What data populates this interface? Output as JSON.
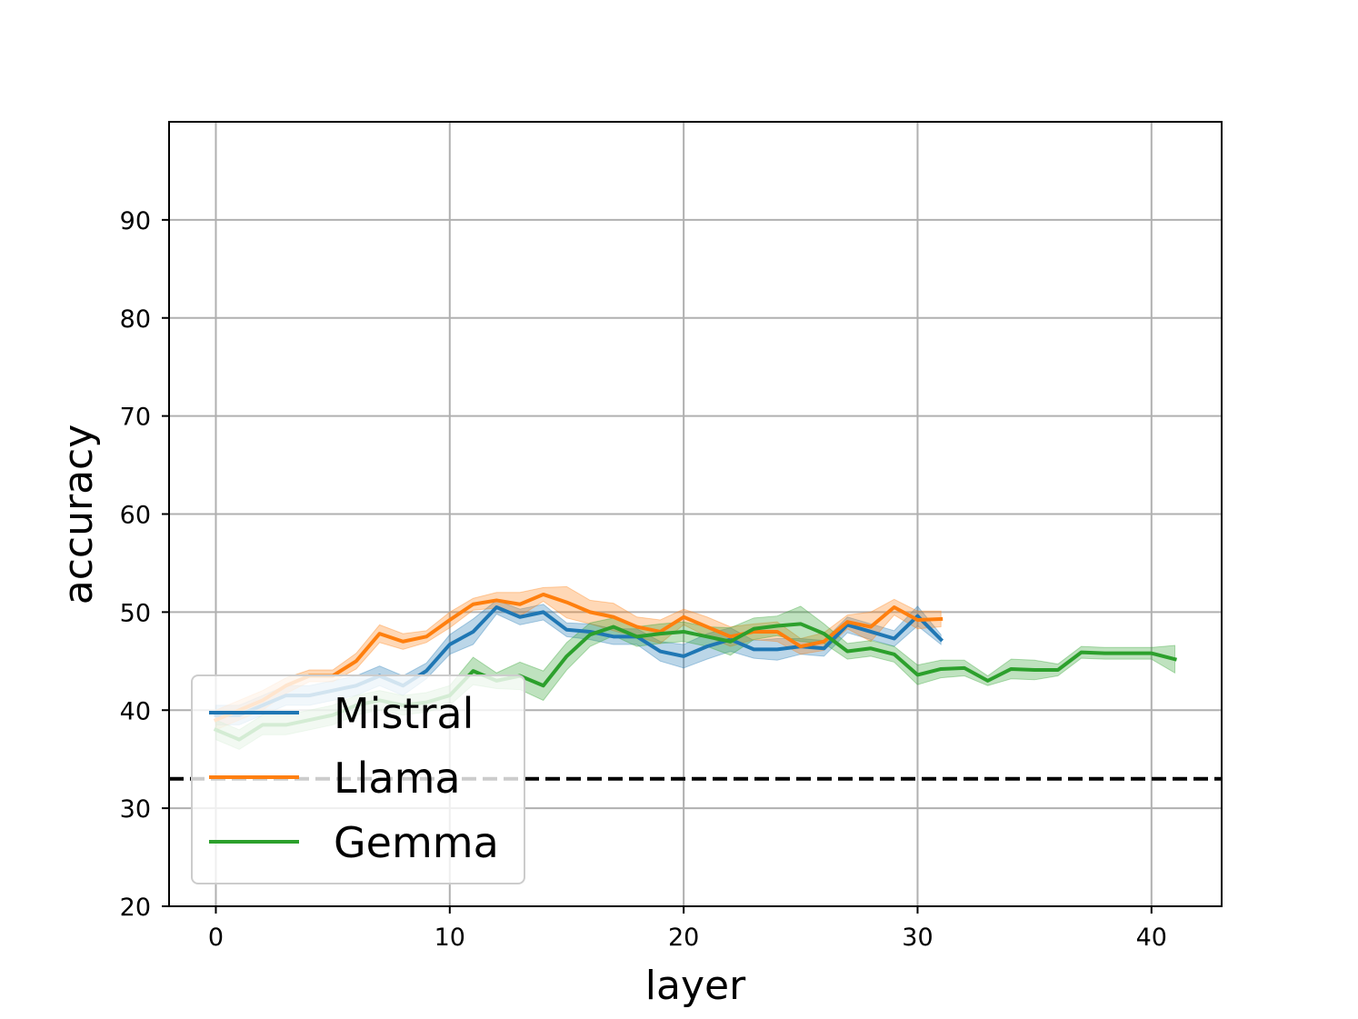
{
  "chart_data": {
    "type": "line",
    "xlabel": "layer",
    "ylabel": "accuracy",
    "xlim": [
      -2,
      43
    ],
    "ylim": [
      20,
      100
    ],
    "xticks": [
      0,
      10,
      20,
      30,
      40
    ],
    "yticks": [
      20,
      30,
      40,
      50,
      60,
      70,
      80,
      90
    ],
    "grid": true,
    "legend_position": "lower-left",
    "baseline": {
      "y": 33,
      "style": "dashed",
      "color": "#000000"
    },
    "series": [
      {
        "name": "Mistral",
        "color": "#1f77b4",
        "x": [
          0,
          1,
          2,
          3,
          4,
          5,
          6,
          7,
          8,
          9,
          10,
          11,
          12,
          13,
          14,
          15,
          16,
          17,
          18,
          19,
          20,
          21,
          22,
          23,
          24,
          25,
          26,
          27,
          28,
          29,
          30,
          31
        ],
        "y": [
          39.5,
          39.5,
          40.5,
          41.5,
          41.5,
          42,
          42.5,
          43.5,
          42.5,
          44,
          46.7,
          48,
          50.5,
          49.5,
          50,
          48.2,
          48,
          47.5,
          47.5,
          46,
          45.5,
          46.5,
          47.2,
          46.2,
          46.2,
          46.5,
          46.3,
          48.7,
          48,
          47.3,
          49.6,
          47.2
        ],
        "band": [
          1.0,
          1.0,
          1.0,
          1.0,
          1.0,
          1.0,
          1.0,
          1.0,
          1.0,
          0.8,
          1.0,
          1.3,
          0.7,
          0.8,
          0.8,
          0.7,
          0.8,
          0.8,
          0.8,
          1.0,
          1.2,
          1.3,
          1.2,
          0.9,
          1.1,
          0.8,
          0.8,
          0.8,
          0.8,
          0.8,
          1.0,
          0.5
        ]
      },
      {
        "name": "Llama",
        "color": "#ff7f0e",
        "x": [
          0,
          1,
          2,
          3,
          4,
          5,
          6,
          7,
          8,
          9,
          10,
          11,
          12,
          13,
          14,
          15,
          16,
          17,
          18,
          19,
          20,
          21,
          22,
          23,
          24,
          25,
          26,
          27,
          28,
          29,
          30,
          31
        ],
        "y": [
          39,
          40,
          41,
          42.5,
          43.5,
          43.5,
          45,
          47.8,
          47,
          47.5,
          49.2,
          50.8,
          51.2,
          50.8,
          51.8,
          51,
          50,
          49.5,
          48.5,
          48,
          49.5,
          48.5,
          47.5,
          48,
          48,
          46.5,
          47,
          49,
          48.5,
          50.5,
          49.2,
          49.3
        ],
        "band": [
          1.0,
          1.0,
          1.0,
          0.8,
          0.6,
          0.6,
          0.8,
          0.9,
          0.8,
          0.6,
          0.8,
          0.6,
          0.8,
          1.2,
          0.7,
          1.6,
          1.2,
          1.4,
          1.0,
          1.2,
          0.8,
          1.0,
          1.0,
          0.8,
          1.0,
          0.8,
          0.9,
          0.7,
          1.5,
          0.8,
          0.9,
          0.8
        ]
      },
      {
        "name": "Gemma",
        "color": "#2ca02c",
        "x": [
          0,
          1,
          2,
          3,
          4,
          5,
          6,
          7,
          8,
          9,
          10,
          11,
          12,
          13,
          14,
          15,
          16,
          17,
          18,
          19,
          20,
          21,
          22,
          23,
          24,
          25,
          26,
          27,
          28,
          29,
          30,
          31,
          32,
          33,
          34,
          35,
          36,
          37,
          38,
          39,
          40,
          41
        ],
        "y": [
          38,
          37,
          38.5,
          38.5,
          39,
          39.5,
          40.5,
          41,
          40.5,
          40.8,
          41.5,
          44,
          43,
          43.5,
          42.5,
          45.5,
          47.7,
          48.5,
          47.5,
          47.8,
          48,
          47.5,
          47,
          48.3,
          48.6,
          48.8,
          47.8,
          46,
          46.3,
          45.7,
          43.6,
          44.2,
          44.3,
          43,
          44.2,
          44.1,
          44.1,
          45.9,
          45.8,
          45.8,
          45.8,
          45.2
        ],
        "band": [
          1.0,
          1.0,
          1.0,
          1.0,
          1.0,
          1.0,
          1.0,
          1.0,
          1.0,
          1.0,
          1.0,
          1.4,
          0.8,
          1.4,
          1.5,
          1.4,
          1.2,
          0.9,
          1.0,
          1.0,
          1.0,
          1.0,
          1.4,
          1.1,
          1.0,
          1.8,
          1.0,
          0.8,
          0.8,
          0.8,
          1.0,
          0.9,
          0.8,
          0.5,
          1.0,
          1.0,
          0.6,
          0.6,
          0.6,
          0.6,
          0.6,
          1.4
        ]
      }
    ]
  }
}
